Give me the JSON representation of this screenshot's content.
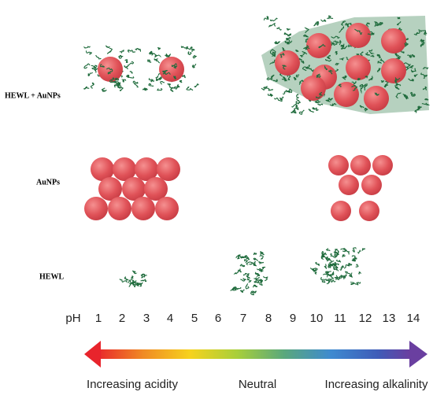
{
  "rows": {
    "complex": "HEWL + AuNPs",
    "nanoparticles": "AuNPs",
    "protein": "HEWL"
  },
  "ph_scale": {
    "label": "pH",
    "ticks": [
      "1",
      "2",
      "3",
      "4",
      "5",
      "6",
      "7",
      "8",
      "9",
      "10",
      "11",
      "12",
      "13",
      "14"
    ]
  },
  "arrow_labels": {
    "left": "Increasing acidity",
    "middle": "Neutral",
    "right": "Increasing alkalinity"
  }
}
